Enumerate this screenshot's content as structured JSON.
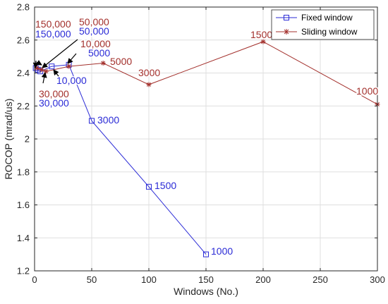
{
  "chart_data": {
    "type": "line",
    "title": "",
    "xlabel": "Windows (No.)",
    "ylabel": "ROCOP (mrad/us)",
    "xlim": [
      0,
      300
    ],
    "ylim": [
      1.2,
      2.8
    ],
    "xticks": [
      0,
      50,
      100,
      150,
      200,
      250,
      300
    ],
    "yticks": [
      1.2,
      1.4,
      1.6,
      1.8,
      2,
      2.2,
      2.4,
      2.6,
      2.8
    ],
    "grid": true,
    "legend_position": "top-right",
    "series": [
      {
        "name": "Fixed window",
        "color": "#2b2bd6",
        "marker": "square",
        "points": [
          {
            "x": 1,
            "y": 2.43,
            "label": "150,000"
          },
          {
            "x": 3,
            "y": 2.42,
            "label": "50,000"
          },
          {
            "x": 5,
            "y": 2.41,
            "label": "30,000"
          },
          {
            "x": 15,
            "y": 2.44,
            "label": "10,000"
          },
          {
            "x": 30,
            "y": 2.45,
            "label": "5000"
          },
          {
            "x": 50,
            "y": 2.11,
            "label": "3000"
          },
          {
            "x": 100,
            "y": 1.71,
            "label": "1500"
          },
          {
            "x": 150,
            "y": 1.3,
            "label": "1000"
          }
        ]
      },
      {
        "name": "Sliding window",
        "color": "#a3302c",
        "marker": "asterisk",
        "points": [
          {
            "x": 2,
            "y": 2.43,
            "label": "150,000"
          },
          {
            "x": 6,
            "y": 2.42,
            "label": "50,000"
          },
          {
            "x": 10,
            "y": 2.41,
            "label": "30,000"
          },
          {
            "x": 30,
            "y": 2.44,
            "label": "10,000"
          },
          {
            "x": 60,
            "y": 2.46,
            "label": "5000"
          },
          {
            "x": 100,
            "y": 2.33,
            "label": "3000"
          },
          {
            "x": 200,
            "y": 2.59,
            "label": "1500"
          },
          {
            "x": 300,
            "y": 2.21,
            "label": "1000"
          }
        ]
      }
    ]
  }
}
